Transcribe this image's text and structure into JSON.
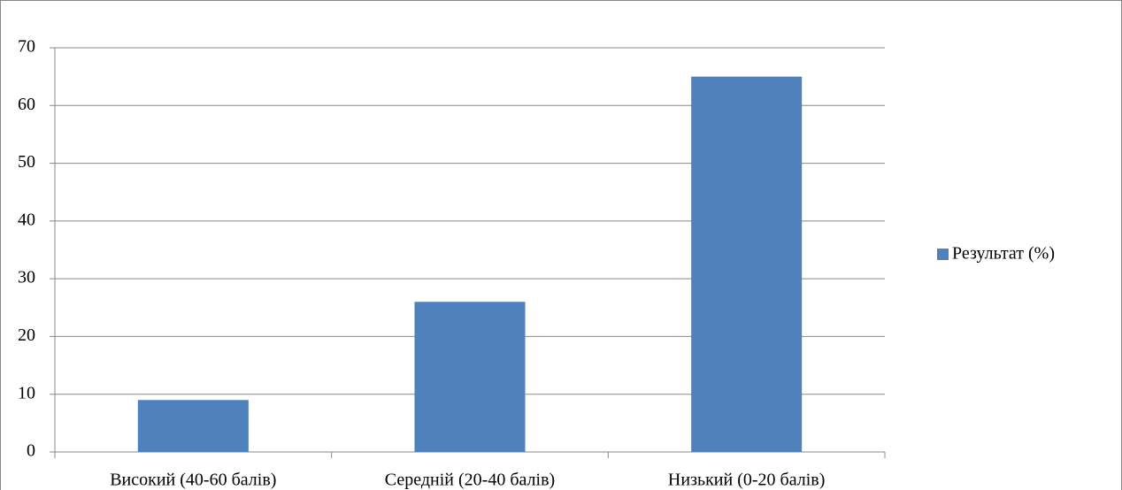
{
  "chart_data": {
    "type": "bar",
    "categories": [
      "Високий (40-60 балів)",
      "Середній (20-40 балів)",
      "Низький (0-20 балів)"
    ],
    "series": [
      {
        "name": "Результат (%)",
        "color": "#4f81bd",
        "values": [
          9,
          26,
          65
        ]
      }
    ],
    "ylim": [
      0,
      70
    ],
    "yticks": [
      0,
      10,
      20,
      30,
      40,
      50,
      60,
      70
    ],
    "grid": true,
    "legend": "right"
  }
}
